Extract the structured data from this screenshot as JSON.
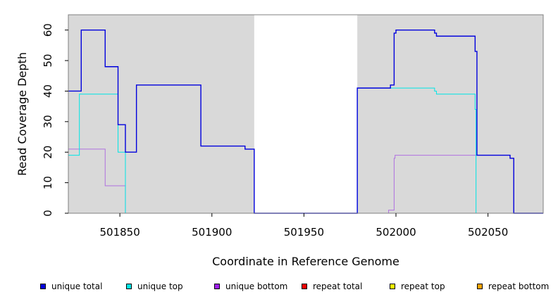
{
  "chart_data": {
    "type": "line",
    "title": "",
    "xlabel": "Coordinate in Reference Genome",
    "ylabel": "Read Coverage Depth",
    "xlim": [
      501822,
      502080
    ],
    "ylim": [
      0,
      65
    ],
    "xticks": [
      501850,
      501900,
      501950,
      502000,
      502050
    ],
    "yticks": [
      0,
      10,
      20,
      30,
      40,
      50,
      60
    ],
    "background_color": "#d9d9d9",
    "unshaded_region": [
      501923,
      501979
    ],
    "grid": false,
    "legend_position": "bottom",
    "series": [
      {
        "name": "unique total",
        "color": "#0000dd",
        "step_points": [
          [
            501822,
            40
          ],
          [
            501829,
            40
          ],
          [
            501829,
            60
          ],
          [
            501842,
            60
          ],
          [
            501842,
            48
          ],
          [
            501849,
            48
          ],
          [
            501849,
            29
          ],
          [
            501853,
            29
          ],
          [
            501853,
            20
          ],
          [
            501859,
            20
          ],
          [
            501859,
            42
          ],
          [
            501894,
            42
          ],
          [
            501894,
            22
          ],
          [
            501918,
            22
          ],
          [
            501918,
            21
          ],
          [
            501923,
            21
          ],
          [
            501923,
            0
          ],
          [
            501979,
            0
          ],
          [
            501979,
            41
          ],
          [
            501997,
            41
          ],
          [
            501997,
            42
          ],
          [
            501999,
            42
          ],
          [
            501999,
            59
          ],
          [
            502000,
            59
          ],
          [
            502000,
            60
          ],
          [
            502021,
            60
          ],
          [
            502021,
            59
          ],
          [
            502022,
            59
          ],
          [
            502022,
            58
          ],
          [
            502043,
            58
          ],
          [
            502043,
            53
          ],
          [
            502044,
            53
          ],
          [
            502044,
            19
          ],
          [
            502062,
            19
          ],
          [
            502062,
            18
          ],
          [
            502064,
            18
          ],
          [
            502064,
            0
          ],
          [
            502080,
            0
          ]
        ]
      },
      {
        "name": "unique top",
        "color": "#00e5e5",
        "step_points": [
          [
            501822,
            19
          ],
          [
            501828,
            19
          ],
          [
            501828,
            39
          ],
          [
            501849,
            39
          ],
          [
            501849,
            20
          ],
          [
            501853,
            20
          ],
          [
            501853,
            0
          ],
          [
            501923,
            0
          ],
          [
            501979,
            0
          ],
          [
            501979,
            41
          ],
          [
            502021,
            41
          ],
          [
            502021,
            40
          ],
          [
            502022,
            40
          ],
          [
            502022,
            39
          ],
          [
            502043,
            39
          ],
          [
            502043,
            34
          ],
          [
            502043.5,
            34
          ],
          [
            502043.5,
            0
          ],
          [
            502080,
            0
          ]
        ]
      },
      {
        "name": "unique bottom",
        "color": "#b070e0",
        "step_points": [
          [
            501822,
            21
          ],
          [
            501842,
            21
          ],
          [
            501842,
            9
          ],
          [
            501853,
            9
          ],
          [
            501853,
            0
          ],
          [
            501996,
            0
          ],
          [
            501996,
            1
          ],
          [
            501999,
            1
          ],
          [
            501999,
            18
          ],
          [
            501999.5,
            18
          ],
          [
            501999.5,
            19
          ],
          [
            502062,
            19
          ],
          [
            502062,
            18
          ],
          [
            502064,
            18
          ],
          [
            502064,
            0
          ],
          [
            502080,
            0
          ]
        ]
      },
      {
        "name": "repeat total",
        "color": "#ff0000",
        "step_points": [
          [
            501822,
            0
          ],
          [
            502080,
            0
          ]
        ]
      },
      {
        "name": "repeat top",
        "color": "#ffff00",
        "step_points": [
          [
            501822,
            0
          ],
          [
            502080,
            0
          ]
        ]
      },
      {
        "name": "repeat bottom",
        "color": "#ffa500",
        "step_points": [
          [
            501822,
            0
          ],
          [
            502080,
            0
          ]
        ]
      }
    ],
    "legend": [
      {
        "label": "unique total",
        "color": "#0000dd"
      },
      {
        "label": "unique top",
        "color": "#00e5e5"
      },
      {
        "label": "unique bottom",
        "color": "#a020f0"
      },
      {
        "label": "repeat total",
        "color": "#ff0000"
      },
      {
        "label": "repeat top",
        "color": "#ffff00"
      },
      {
        "label": "repeat bottom",
        "color": "#ffa500"
      }
    ]
  }
}
